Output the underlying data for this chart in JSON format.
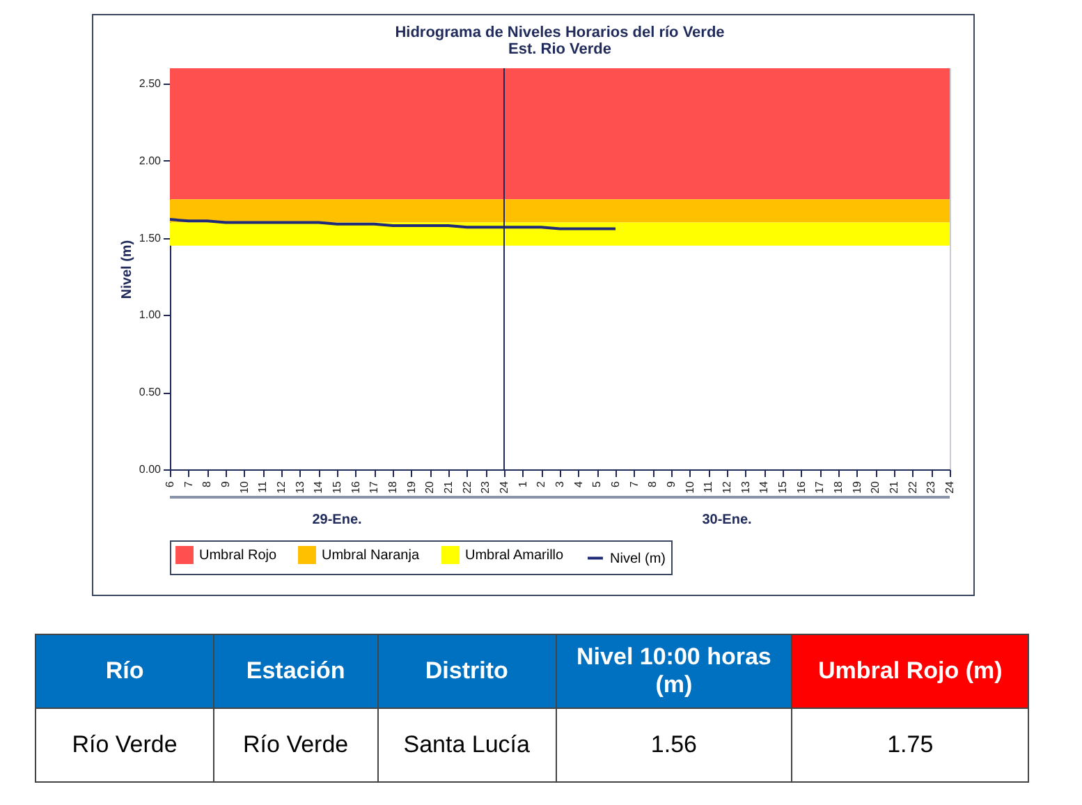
{
  "chart_data": [
    {
      "type": "line",
      "title": "Hidrograma de Niveles Horarios del río Verde",
      "subtitle": "Est. Rio Verde",
      "ylabel": "Nivel (m)",
      "annotations": [
        "29-Ene.",
        "30-Ene."
      ],
      "categories": [
        "6",
        "7",
        "8",
        "9",
        "10",
        "11",
        "12",
        "13",
        "14",
        "15",
        "16",
        "17",
        "18",
        "19",
        "20",
        "21",
        "22",
        "23",
        "24",
        "1",
        "2",
        "3",
        "4",
        "5",
        "6",
        "7",
        "8",
        "9",
        "10",
        "11",
        "12",
        "13",
        "14",
        "15",
        "16",
        "17",
        "18",
        "19",
        "20",
        "21",
        "22",
        "23",
        "24"
      ],
      "series": [
        {
          "name": "Nivel (m)",
          "color": "#1f2a7a",
          "values": [
            1.62,
            1.61,
            1.61,
            1.6,
            1.6,
            1.6,
            1.6,
            1.6,
            1.6,
            1.59,
            1.59,
            1.59,
            1.58,
            1.58,
            1.58,
            1.58,
            1.57,
            1.57,
            1.57,
            1.57,
            1.57,
            1.56,
            1.56,
            1.56,
            1.56,
            null,
            null,
            null,
            null,
            null,
            null,
            null,
            null,
            null,
            null,
            null,
            null,
            null,
            null,
            null,
            null,
            null,
            null
          ]
        }
      ],
      "bands": [
        {
          "axis": "y",
          "from": 1.75,
          "to": 2.6,
          "label": "Umbral Rojo",
          "color": "#ff5050"
        },
        {
          "axis": "y",
          "from": 1.6,
          "to": 1.75,
          "label": "Umbral Naranja",
          "color": "#ffc000"
        },
        {
          "axis": "y",
          "from": 1.45,
          "to": 1.6,
          "label": "Umbral Amarillo",
          "color": "#ffff00"
        }
      ],
      "ref_lines": [
        {
          "axis": "x",
          "value": "24",
          "color": "#1f2a5a"
        }
      ],
      "ylim": [
        0,
        2.6
      ],
      "yticks": [
        {
          "value": 0,
          "label": "0.00"
        },
        {
          "value": 0.5,
          "label": "0.50"
        },
        {
          "value": 1,
          "label": "1.00"
        },
        {
          "value": 1.5,
          "label": "1.50"
        },
        {
          "value": 2,
          "label": "2.00"
        },
        {
          "value": 2.5,
          "label": "2.50"
        }
      ],
      "grid": false,
      "legend": "bottom",
      "marker": "none",
      "line_style": "solid"
    },
    {
      "type": "other",
      "annotations": [
        "Río",
        "Estación",
        "Distrito",
        "Nivel  10:00 horas (m)",
        "Umbral Rojo (m)",
        "Río Verde",
        "Río Verde",
        "Santa Lucía",
        "1.56",
        "1.75"
      ]
    }
  ]
}
